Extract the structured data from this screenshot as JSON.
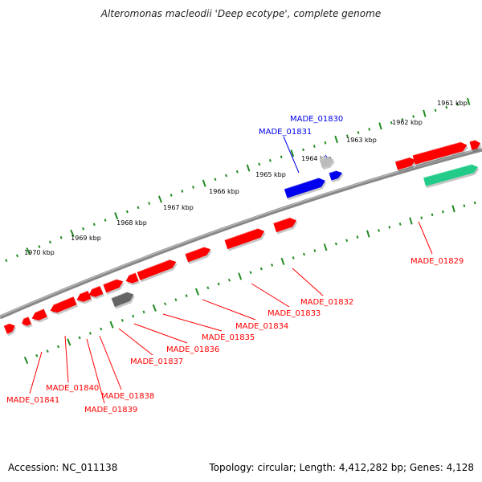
{
  "title": "Alteromonas macleodii 'Deep ecotype', complete genome",
  "footer": {
    "accession": "Accession: NC_011138",
    "summary": "Topology: circular; Length: 4,412,282 bp; Genes: 4,128"
  },
  "colors": {
    "forward_gene": "#ff0000",
    "reverse_gene": "#ff0000",
    "blue_gene": "#0000ee",
    "rna_gene": "#22cc88",
    "pseudo_gene": "#666666",
    "light_gene": "#bbbbbb",
    "tick": "#228b22",
    "backbone": "#888888"
  },
  "kbp_ticks": [
    "1961 kbp",
    "1962 kbp",
    "1963 kbp",
    "1964 kbp",
    "1965 kbp",
    "1966 kbp",
    "1967 kbp",
    "1968 kbp",
    "1969 kbp",
    "1970 kbp"
  ],
  "gene_labels": [
    {
      "id": "MADE_01830",
      "color": "blue"
    },
    {
      "id": "MADE_01831",
      "color": "blue"
    },
    {
      "id": "MADE_01829",
      "color": "red"
    },
    {
      "id": "MADE_01832",
      "color": "red"
    },
    {
      "id": "MADE_01833",
      "color": "red"
    },
    {
      "id": "MADE_01834",
      "color": "red"
    },
    {
      "id": "MADE_01835",
      "color": "red"
    },
    {
      "id": "MADE_01836",
      "color": "red"
    },
    {
      "id": "MADE_01837",
      "color": "red"
    },
    {
      "id": "MADE_01838",
      "color": "red"
    },
    {
      "id": "MADE_01839",
      "color": "red"
    },
    {
      "id": "MADE_01840",
      "color": "red"
    },
    {
      "id": "MADE_01841",
      "color": "red"
    }
  ]
}
